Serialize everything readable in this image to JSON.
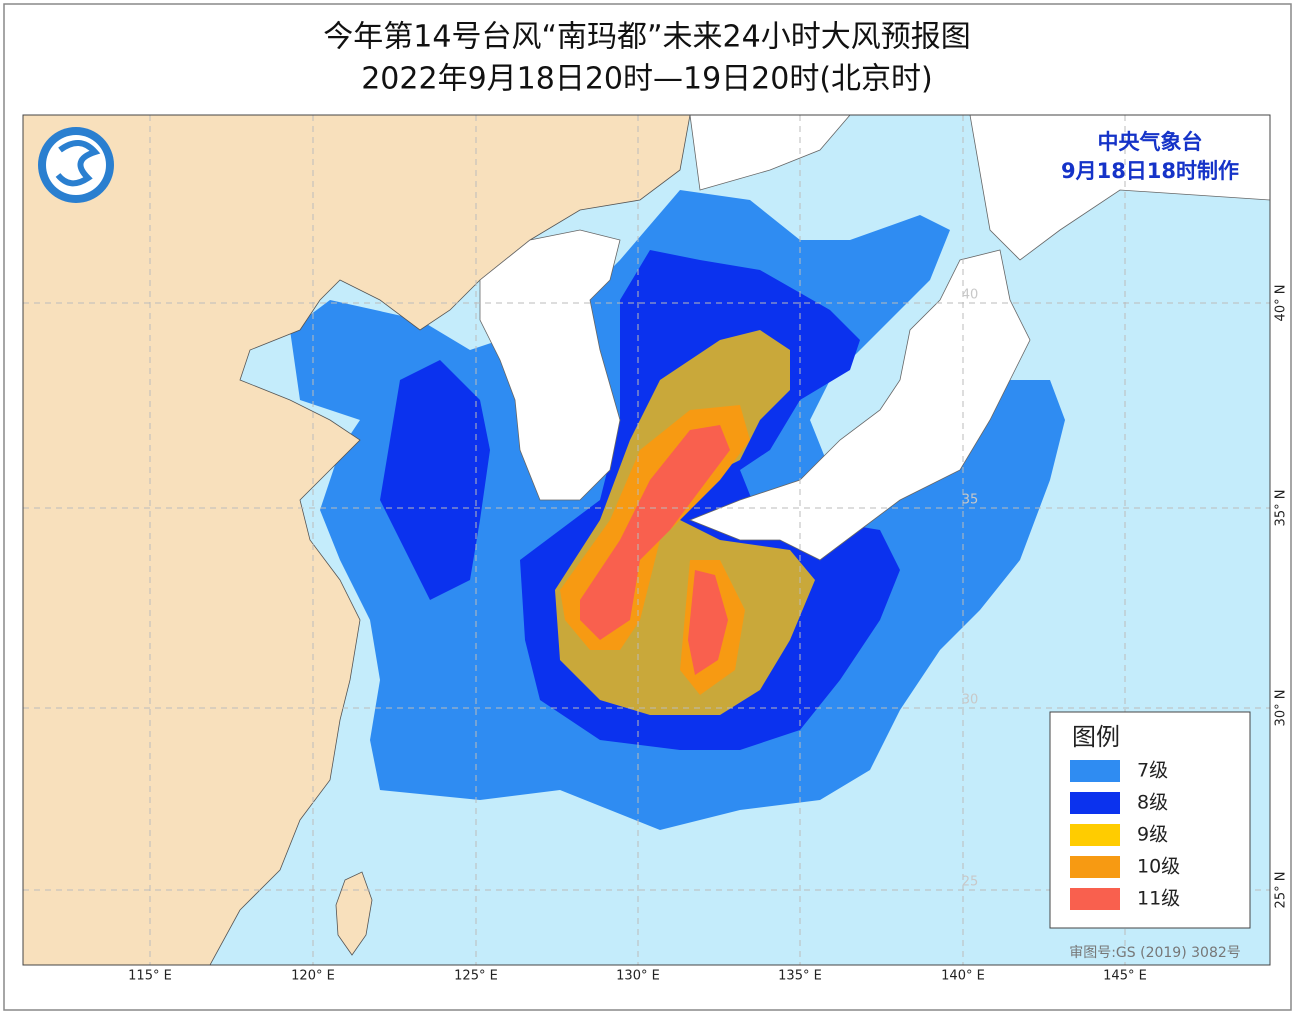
{
  "header": {
    "title": "今年第14号台风“南玛都”未来24小时大风预报图",
    "subtitle": "2022年9月18日20时—19日20时(北京时)"
  },
  "issuer": {
    "agency": "中央气象台",
    "made_at": "9月18日18时制作"
  },
  "legend": {
    "title": "图例",
    "items": [
      {
        "label": "7级",
        "color": "#2f8cf2"
      },
      {
        "label": "8级",
        "color": "#0b32ee"
      },
      {
        "label": "9级",
        "color": "#ffcc00"
      },
      {
        "label": "10级",
        "color": "#f79a12"
      },
      {
        "label": "11级",
        "color": "#f9604e"
      }
    ]
  },
  "axes": {
    "longitude_labels": [
      "115° E",
      "120° E",
      "125° E",
      "130° E",
      "135° E",
      "140° E",
      "145° E"
    ],
    "latitude_labels": [
      "40° N",
      "35° N",
      "30° N",
      "25° N"
    ],
    "grid_labels": [
      "40",
      "35",
      "30",
      "25"
    ]
  },
  "footer": {
    "review_number": "审图号:GS (2019) 3082号"
  }
}
